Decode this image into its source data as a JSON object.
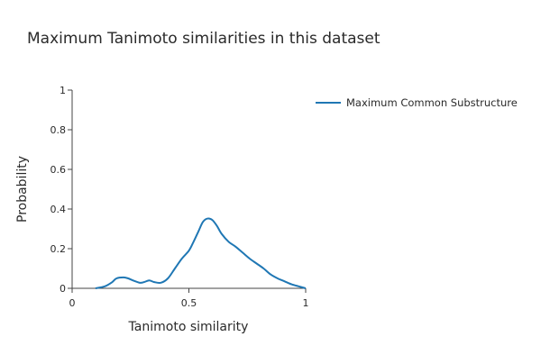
{
  "chart_data": {
    "type": "line",
    "title": "Maximum Tanimoto similarities in this dataset",
    "xlabel": "Tanimoto similarity",
    "ylabel": "Probability",
    "xlim": [
      0,
      1
    ],
    "ylim": [
      0,
      1
    ],
    "x_ticks": [
      0,
      0.5,
      1
    ],
    "x_tick_labels": [
      "0",
      "0.5",
      "1"
    ],
    "y_ticks": [
      0,
      0.2,
      0.4,
      0.6,
      0.8,
      1
    ],
    "y_tick_labels": [
      "0",
      "0.2",
      "0.4",
      "0.6",
      "0.8",
      "1"
    ],
    "grid": false,
    "legend": {
      "placement": "top-right"
    },
    "series": [
      {
        "name": "Maximum Common Substructure",
        "color": "#1f77b4",
        "x": [
          0.1,
          0.14,
          0.17,
          0.19,
          0.22,
          0.24,
          0.26,
          0.29,
          0.31,
          0.33,
          0.35,
          0.38,
          0.41,
          0.44,
          0.47,
          0.5,
          0.52,
          0.54,
          0.56,
          0.58,
          0.6,
          0.62,
          0.64,
          0.67,
          0.7,
          0.73,
          0.76,
          0.79,
          0.82,
          0.85,
          0.88,
          0.91,
          0.94,
          0.97,
          1.0
        ],
        "y": [
          0,
          0.01,
          0.03,
          0.05,
          0.055,
          0.05,
          0.04,
          0.028,
          0.032,
          0.04,
          0.032,
          0.028,
          0.05,
          0.1,
          0.15,
          0.19,
          0.235,
          0.285,
          0.335,
          0.352,
          0.345,
          0.315,
          0.275,
          0.235,
          0.21,
          0.18,
          0.15,
          0.125,
          0.1,
          0.07,
          0.05,
          0.035,
          0.02,
          0.01,
          0.0
        ]
      }
    ]
  }
}
